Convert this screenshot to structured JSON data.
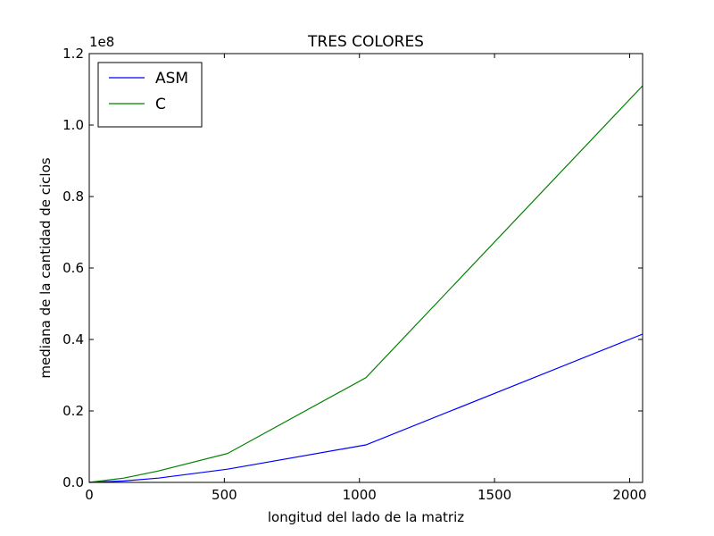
{
  "chart_data": {
    "type": "line",
    "title": "TRES COLORES",
    "xlabel": "longitud del lado de la matriz",
    "ylabel": "mediana de la cantidad de ciclos",
    "y_multiplier": "1e8",
    "xlim": [
      0,
      2048
    ],
    "ylim": [
      0,
      1.2
    ],
    "x_ticks": [
      0,
      500,
      1000,
      1500,
      2000
    ],
    "x_tick_labels": [
      "0",
      "500",
      "1000",
      "1500",
      "2000"
    ],
    "y_ticks": [
      0.0,
      0.2,
      0.4,
      0.6,
      0.8,
      1.0,
      1.2
    ],
    "y_tick_labels": [
      "0.0",
      "0.2",
      "0.4",
      "0.6",
      "0.8",
      "1.0",
      "1.2"
    ],
    "grid": false,
    "legend_position": "top-left",
    "x": [
      0,
      128,
      256,
      512,
      1024,
      2048
    ],
    "series": [
      {
        "name": "ASM",
        "color": "#0000ff",
        "values": [
          0.0,
          0.004,
          0.012,
          0.037,
          0.105,
          0.415
        ]
      },
      {
        "name": "C",
        "color": "#008000",
        "values": [
          0.0,
          0.012,
          0.032,
          0.081,
          0.293,
          1.11
        ]
      }
    ]
  }
}
